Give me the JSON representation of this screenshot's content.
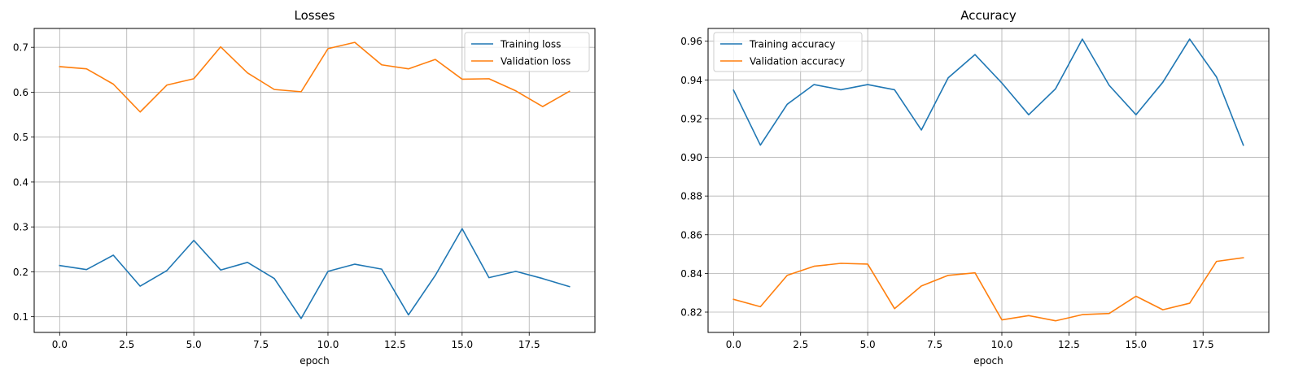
{
  "chart_data": [
    {
      "type": "line",
      "title": "Losses",
      "xlabel": "epoch",
      "ylabel": "",
      "xlim": [
        -0.95,
        19.95
      ],
      "ylim": [
        0.065,
        0.742
      ],
      "xticks": [
        0,
        2.5,
        5,
        7.5,
        10,
        12.5,
        15,
        17.5
      ],
      "xtick_labels": [
        "0.0",
        "2.5",
        "5.0",
        "7.5",
        "10.0",
        "12.5",
        "15.0",
        "17.5"
      ],
      "yticks": [
        0.1,
        0.2,
        0.3,
        0.4,
        0.5,
        0.6,
        0.7
      ],
      "ytick_labels": [
        "0.1",
        "0.2",
        "0.3",
        "0.4",
        "0.5",
        "0.6",
        "0.7"
      ],
      "grid": true,
      "legend_position": "upper right",
      "x": [
        0,
        1,
        2,
        3,
        4,
        5,
        6,
        7,
        8,
        9,
        10,
        11,
        12,
        13,
        14,
        15,
        16,
        17,
        18,
        19
      ],
      "series": [
        {
          "name": "Training loss",
          "color": "#1f77b4",
          "values": [
            0.214,
            0.205,
            0.237,
            0.168,
            0.203,
            0.27,
            0.204,
            0.221,
            0.185,
            0.096,
            0.201,
            0.217,
            0.206,
            0.104,
            0.192,
            0.296,
            0.187,
            0.201,
            0.185,
            0.167
          ]
        },
        {
          "name": "Validation loss",
          "color": "#ff7f0e",
          "values": [
            0.657,
            0.652,
            0.618,
            0.556,
            0.616,
            0.63,
            0.701,
            0.643,
            0.606,
            0.601,
            0.697,
            0.711,
            0.661,
            0.652,
            0.673,
            0.629,
            0.63,
            0.603,
            0.568,
            0.602
          ]
        }
      ]
    },
    {
      "type": "line",
      "title": "Accuracy",
      "xlabel": "epoch",
      "ylabel": "",
      "xlim": [
        -0.95,
        19.95
      ],
      "ylim": [
        0.8095,
        0.9666
      ],
      "xticks": [
        0,
        2.5,
        5,
        7.5,
        10,
        12.5,
        15,
        17.5
      ],
      "xtick_labels": [
        "0.0",
        "2.5",
        "5.0",
        "7.5",
        "10.0",
        "12.5",
        "15.0",
        "17.5"
      ],
      "yticks": [
        0.82,
        0.84,
        0.86,
        0.88,
        0.9,
        0.92,
        0.94,
        0.96
      ],
      "ytick_labels": [
        "0.82",
        "0.84",
        "0.86",
        "0.88",
        "0.90",
        "0.92",
        "0.94",
        "0.96"
      ],
      "grid": true,
      "legend_position": "upper left",
      "x": [
        0,
        1,
        2,
        3,
        4,
        5,
        6,
        7,
        8,
        9,
        10,
        11,
        12,
        13,
        14,
        15,
        16,
        17,
        18,
        19
      ],
      "series": [
        {
          "name": "Training accuracy",
          "color": "#1f77b4",
          "values": [
            0.9347,
            0.9063,
            0.9274,
            0.9376,
            0.9349,
            0.9376,
            0.9349,
            0.9141,
            0.9411,
            0.9531,
            0.9384,
            0.922,
            0.9354,
            0.9611,
            0.9372,
            0.922,
            0.9388,
            0.9611,
            0.9415,
            0.9063
          ]
        },
        {
          "name": "Validation accuracy",
          "color": "#ff7f0e",
          "values": [
            0.8266,
            0.8228,
            0.839,
            0.8437,
            0.8452,
            0.8448,
            0.8218,
            0.8335,
            0.839,
            0.8403,
            0.816,
            0.8182,
            0.8155,
            0.8187,
            0.8193,
            0.8282,
            0.8212,
            0.8246,
            0.8462,
            0.8481
          ]
        }
      ]
    }
  ]
}
